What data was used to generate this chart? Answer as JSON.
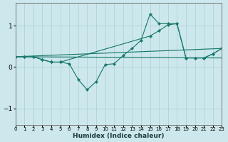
{
  "xlabel": "Humidex (Indice chaleur)",
  "background_color": "#cde8ec",
  "line_color": "#1a7a6e",
  "grid_color": "#a8cfd4",
  "xlim": [
    0,
    23
  ],
  "ylim": [
    -1.4,
    1.55
  ],
  "yticks": [
    -1,
    0,
    1
  ],
  "xticks": [
    0,
    1,
    2,
    3,
    4,
    5,
    6,
    7,
    8,
    9,
    10,
    11,
    12,
    13,
    14,
    15,
    16,
    17,
    18,
    19,
    20,
    21,
    22,
    23
  ],
  "curve1_x": [
    0,
    1,
    2,
    3,
    4,
    5,
    6,
    7,
    8,
    9,
    10,
    11,
    12,
    13,
    14,
    15,
    16,
    17,
    18,
    19,
    20,
    21,
    22,
    23
  ],
  "curve1_y": [
    0.25,
    0.25,
    0.25,
    0.18,
    0.12,
    0.12,
    0.08,
    -0.3,
    -0.55,
    -0.35,
    0.06,
    0.08,
    0.28,
    0.45,
    0.65,
    1.28,
    1.05,
    1.05,
    1.05,
    0.22,
    0.22,
    0.22,
    0.32,
    0.45
  ],
  "curve2_x": [
    0,
    1,
    2,
    3,
    4,
    5,
    15,
    16,
    17,
    18,
    19,
    20,
    21,
    22,
    23
  ],
  "curve2_y": [
    0.25,
    0.25,
    0.25,
    0.18,
    0.12,
    0.12,
    0.75,
    0.88,
    1.02,
    1.05,
    0.22,
    0.22,
    0.22,
    0.32,
    0.45
  ],
  "line1_x": [
    0,
    23
  ],
  "line1_y": [
    0.25,
    0.45
  ],
  "line2_x": [
    0,
    23
  ],
  "line2_y": [
    0.25,
    0.22
  ]
}
